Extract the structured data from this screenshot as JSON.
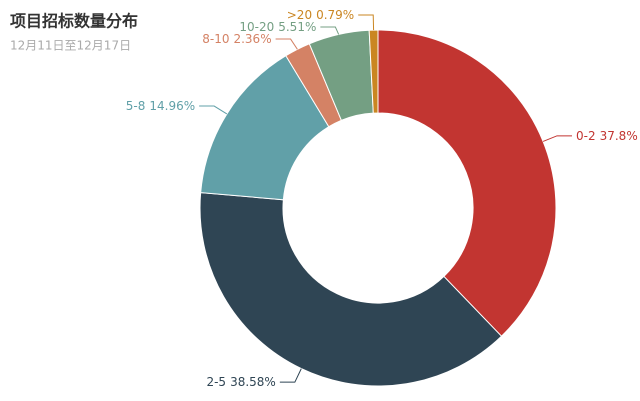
{
  "chart_data": {
    "type": "pie",
    "title": "项目招标数量分布",
    "subtitle": "12月11日至12月17日",
    "categories": [
      "0-2",
      "2-5",
      "5-8",
      "8-10",
      "10-20",
      ">20"
    ],
    "values": [
      37.8,
      38.58,
      14.96,
      2.36,
      5.51,
      0.79
    ],
    "value_labels": [
      "37.8%",
      "38.58%",
      "14.96%",
      "2.36%",
      "5.51%",
      "0.79%"
    ],
    "colors": [
      "#c23531",
      "#2f4554",
      "#61a0a8",
      "#d48265",
      "#749f83",
      "#ca8622"
    ]
  }
}
